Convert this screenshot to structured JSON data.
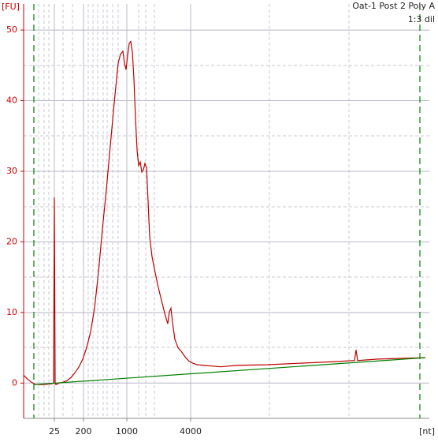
{
  "chart_data": {
    "type": "line",
    "title": "Oat-1 Post 2 Poly A",
    "subtitle": "1:3 dil",
    "y_label": "[FU]",
    "x_label": "[nt]",
    "xlim": [
      0,
      51.5
    ],
    "ylim": [
      -5,
      53.7
    ],
    "xticks": [
      {
        "value": 3.9,
        "label": "25"
      },
      {
        "value": 7.6,
        "label": "200"
      },
      {
        "value": 13.1,
        "label": "1000"
      },
      {
        "value": 21.2,
        "label": "4000"
      }
    ],
    "yticks": [
      0,
      10,
      20,
      30,
      40,
      50
    ],
    "grid": true,
    "axis_color": "#cc0000",
    "series": [
      {
        "color": "#c00000",
        "x": [
          0,
          0.5,
          1.0,
          1.5,
          2.5,
          3.5,
          3.8,
          3.9,
          4.0,
          4.1,
          4.5,
          5.0,
          5.5,
          6.0,
          6.5,
          7.0,
          7.5,
          8.0,
          8.5,
          9.0,
          9.5,
          10.0,
          10.5,
          11.0,
          11.5,
          11.8,
          12.0,
          12.3,
          12.6,
          12.8,
          13.0,
          13.2,
          13.4,
          13.6,
          13.8,
          14.0,
          14.2,
          14.4,
          14.6,
          14.8,
          15.0,
          15.2,
          15.4,
          15.6,
          15.8,
          16.0,
          16.3,
          16.6,
          17.0,
          17.5,
          18.0,
          18.3,
          18.5,
          18.7,
          18.9,
          19.2,
          19.6,
          20.0,
          20.5,
          21.0,
          21.5,
          22.0,
          23.0,
          25.0,
          27.0,
          31.0,
          35.0,
          39.0,
          42.0,
          42.2,
          42.4,
          45.0,
          48.0,
          51.0
        ],
        "values": [
          1.12,
          0.56,
          0.11,
          -0.22,
          -0.22,
          -0.11,
          0,
          26.3,
          0,
          -0.22,
          0,
          0.11,
          0.34,
          0.78,
          1.45,
          2.24,
          3.36,
          5.03,
          7.27,
          10.6,
          15.7,
          21.8,
          27.4,
          33.6,
          39.7,
          43.1,
          45.3,
          46.6,
          47.0,
          45.3,
          44.4,
          46.4,
          48.1,
          48.4,
          46.9,
          43.1,
          37.5,
          33.0,
          30.8,
          31.3,
          29.9,
          30.2,
          31.1,
          30.5,
          25.7,
          20.7,
          17.9,
          16.2,
          14.0,
          11.7,
          9.5,
          8.4,
          10.1,
          10.6,
          8.6,
          6.2,
          5.0,
          4.5,
          3.7,
          3.1,
          2.8,
          2.6,
          2.5,
          2.3,
          2.5,
          2.6,
          2.8,
          3.0,
          3.2,
          4.7,
          3.2,
          3.4,
          3.5,
          3.6
        ]
      },
      {
        "color": "#008000",
        "x": [
          1.3,
          51.0
        ],
        "values": [
          -0.22,
          3.6
        ]
      }
    ]
  }
}
